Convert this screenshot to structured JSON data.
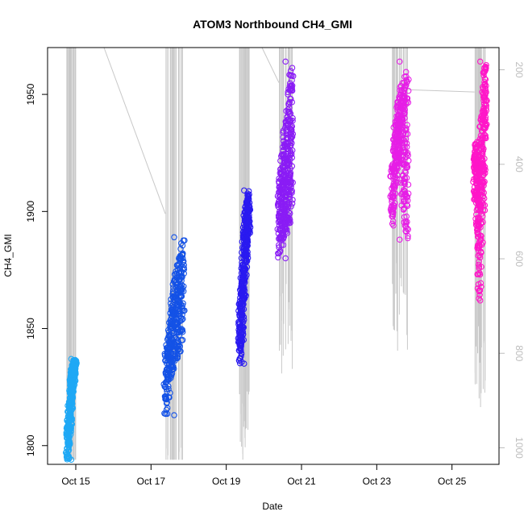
{
  "chart_data": {
    "type": "scatter",
    "title": "ATOM3 Northbound CH4_GMI",
    "xlabel": "Date",
    "ylabel": "CH4_GMI",
    "x_ticks": [
      "Oct 15",
      "Oct 17",
      "Oct 19",
      "Oct 21",
      "Oct 23",
      "Oct 25"
    ],
    "x_tick_days": [
      15,
      17,
      19,
      21,
      23,
      25
    ],
    "xlim_days": [
      14.25,
      26.25
    ],
    "ylim": [
      1792,
      1970
    ],
    "y_ticks": [
      1800,
      1850,
      1900,
      1950
    ],
    "y2_ticks": [
      200,
      400,
      600,
      800,
      1000
    ],
    "y2lim": [
      1035,
      153
    ],
    "colors": {
      "trace": "#c8c8c8",
      "segment1": "#1fa8f5",
      "segment2": "#1452e6",
      "segment3": "#2a1af0",
      "segment4": "#8a1cf5",
      "segment5": "#e61ee6",
      "segment6": "#ff16c8"
    },
    "series": [
      {
        "day_start": 14.78,
        "day_end": 14.98,
        "y_min": 1794,
        "y_max": 1837,
        "y_low": [
          1794,
          1800,
          1806,
          1815,
          1822,
          1826,
          1830
        ],
        "color": "segment1"
      },
      {
        "day_start": 17.38,
        "day_end": 17.85,
        "y_min": 1813,
        "y_max": 1889,
        "y_low": [
          1813,
          1820,
          1828,
          1832,
          1836,
          1838,
          1840,
          1845
        ],
        "color": "segment2"
      },
      {
        "day_start": 19.35,
        "day_end": 19.6,
        "y_min": 1835,
        "y_max": 1909,
        "y_low": [
          1835,
          1842,
          1850,
          1862,
          1872,
          1880,
          1890
        ],
        "color": "segment3"
      },
      {
        "day_start": 20.4,
        "day_end": 20.75,
        "y_min": 1880,
        "y_max": 1964,
        "y_low": [
          1880,
          1885,
          1888,
          1890,
          1892,
          1895,
          1900
        ],
        "color": "segment4"
      },
      {
        "day_start": 23.4,
        "day_end": 23.82,
        "y_min": 1888,
        "y_max": 1964,
        "y_low": [
          1894,
          1910,
          1920,
          1930,
          1900,
          1888
        ],
        "color": "segment5"
      },
      {
        "day_start": 25.6,
        "day_end": 25.9,
        "y_min": 1862,
        "y_max": 1964,
        "y_low": [
          1905,
          1890,
          1862,
          1880,
          1900,
          1930
        ],
        "color": "segment6"
      }
    ]
  }
}
